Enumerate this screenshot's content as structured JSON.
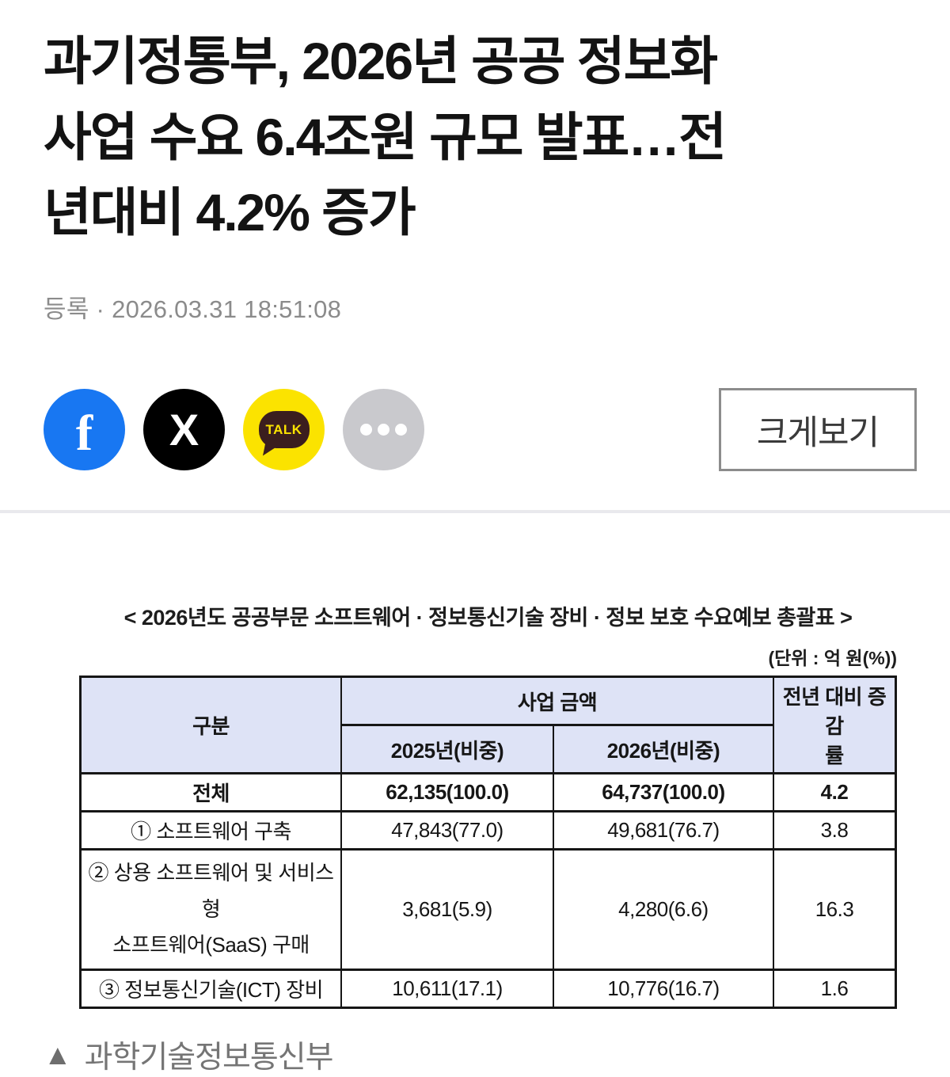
{
  "article": {
    "headline_lines": [
      "과기정통부, 2026년 공공 정보화",
      "사업 수요 6.4조원 규모 발표…전",
      "년대비 4.2% 증가"
    ],
    "meta": "등록 · 2026.03.31 18:51:08",
    "view_larger_label": "크게보기"
  },
  "share": {
    "facebook_glyph": "f",
    "x_glyph": "X",
    "kakao_label": "TALK"
  },
  "figure": {
    "table_title": "< 2026년도 공공부문 소프트웨어 · 정보통신기술 장비 · 정보 보호 수요예보 총괄표 >",
    "unit_note": "(단위 : 억 원(%))",
    "photo_caption_marker": "▲",
    "photo_caption": "과학기술정보통신부"
  },
  "table": {
    "headers": {
      "category": "구분",
      "amount_group": "사업 금액",
      "y2025": "2025년(비중)",
      "y2026": "2026년(비중)",
      "change_line1": "전년 대비 증감",
      "change_line2": "률"
    },
    "rows": [
      {
        "label": "전체",
        "v2025": "62,135(100.0)",
        "v2026": "64,737(100.0)",
        "change": "4.2"
      },
      {
        "label": "① 소프트웨어 구축",
        "v2025": "47,843(77.0)",
        "v2026": "49,681(76.7)",
        "change": "3.8"
      },
      {
        "label_line1": "② 상용 소프트웨어 및 서비스형",
        "label_line2": "소프트웨어(SaaS) 구매",
        "v2025": "3,681(5.9)",
        "v2026": "4,280(6.6)",
        "change": "16.3"
      },
      {
        "label": "③ 정보통신기술(ICT) 장비",
        "v2025": "10,611(17.1)",
        "v2026": "10,776(16.7)",
        "change": "1.6"
      }
    ]
  },
  "chart_data": {
    "type": "table",
    "title": "2026년도 공공부문 소프트웨어 · 정보통신기술 장비 · 정보 보호 수요예보 총괄표",
    "unit": "억 원(%)",
    "columns": [
      "구분",
      "2025년(비중)",
      "2026년(비중)",
      "전년 대비 증감률"
    ],
    "rows": [
      [
        "전체",
        "62,135(100.0)",
        "64,737(100.0)",
        "4.2"
      ],
      [
        "① 소프트웨어 구축",
        "47,843(77.0)",
        "49,681(76.7)",
        "3.8"
      ],
      [
        "② 상용 소프트웨어 및 서비스형 소프트웨어(SaaS) 구매",
        "3,681(5.9)",
        "4,280(6.6)",
        "16.3"
      ],
      [
        "③ 정보통신기술(ICT) 장비",
        "10,611(17.1)",
        "10,776(16.7)",
        "1.6"
      ]
    ]
  },
  "colors": {
    "facebook_blue": "#1877f2",
    "x_black": "#000000",
    "kakao_yellow": "#fbe300",
    "kakao_brown": "#3b1e1e",
    "more_gray": "#c9c9cd",
    "table_header_bg": "#dee3f6",
    "table_border": "#161616",
    "meta_gray": "#8b8b8b",
    "caption_gray": "#757575"
  }
}
